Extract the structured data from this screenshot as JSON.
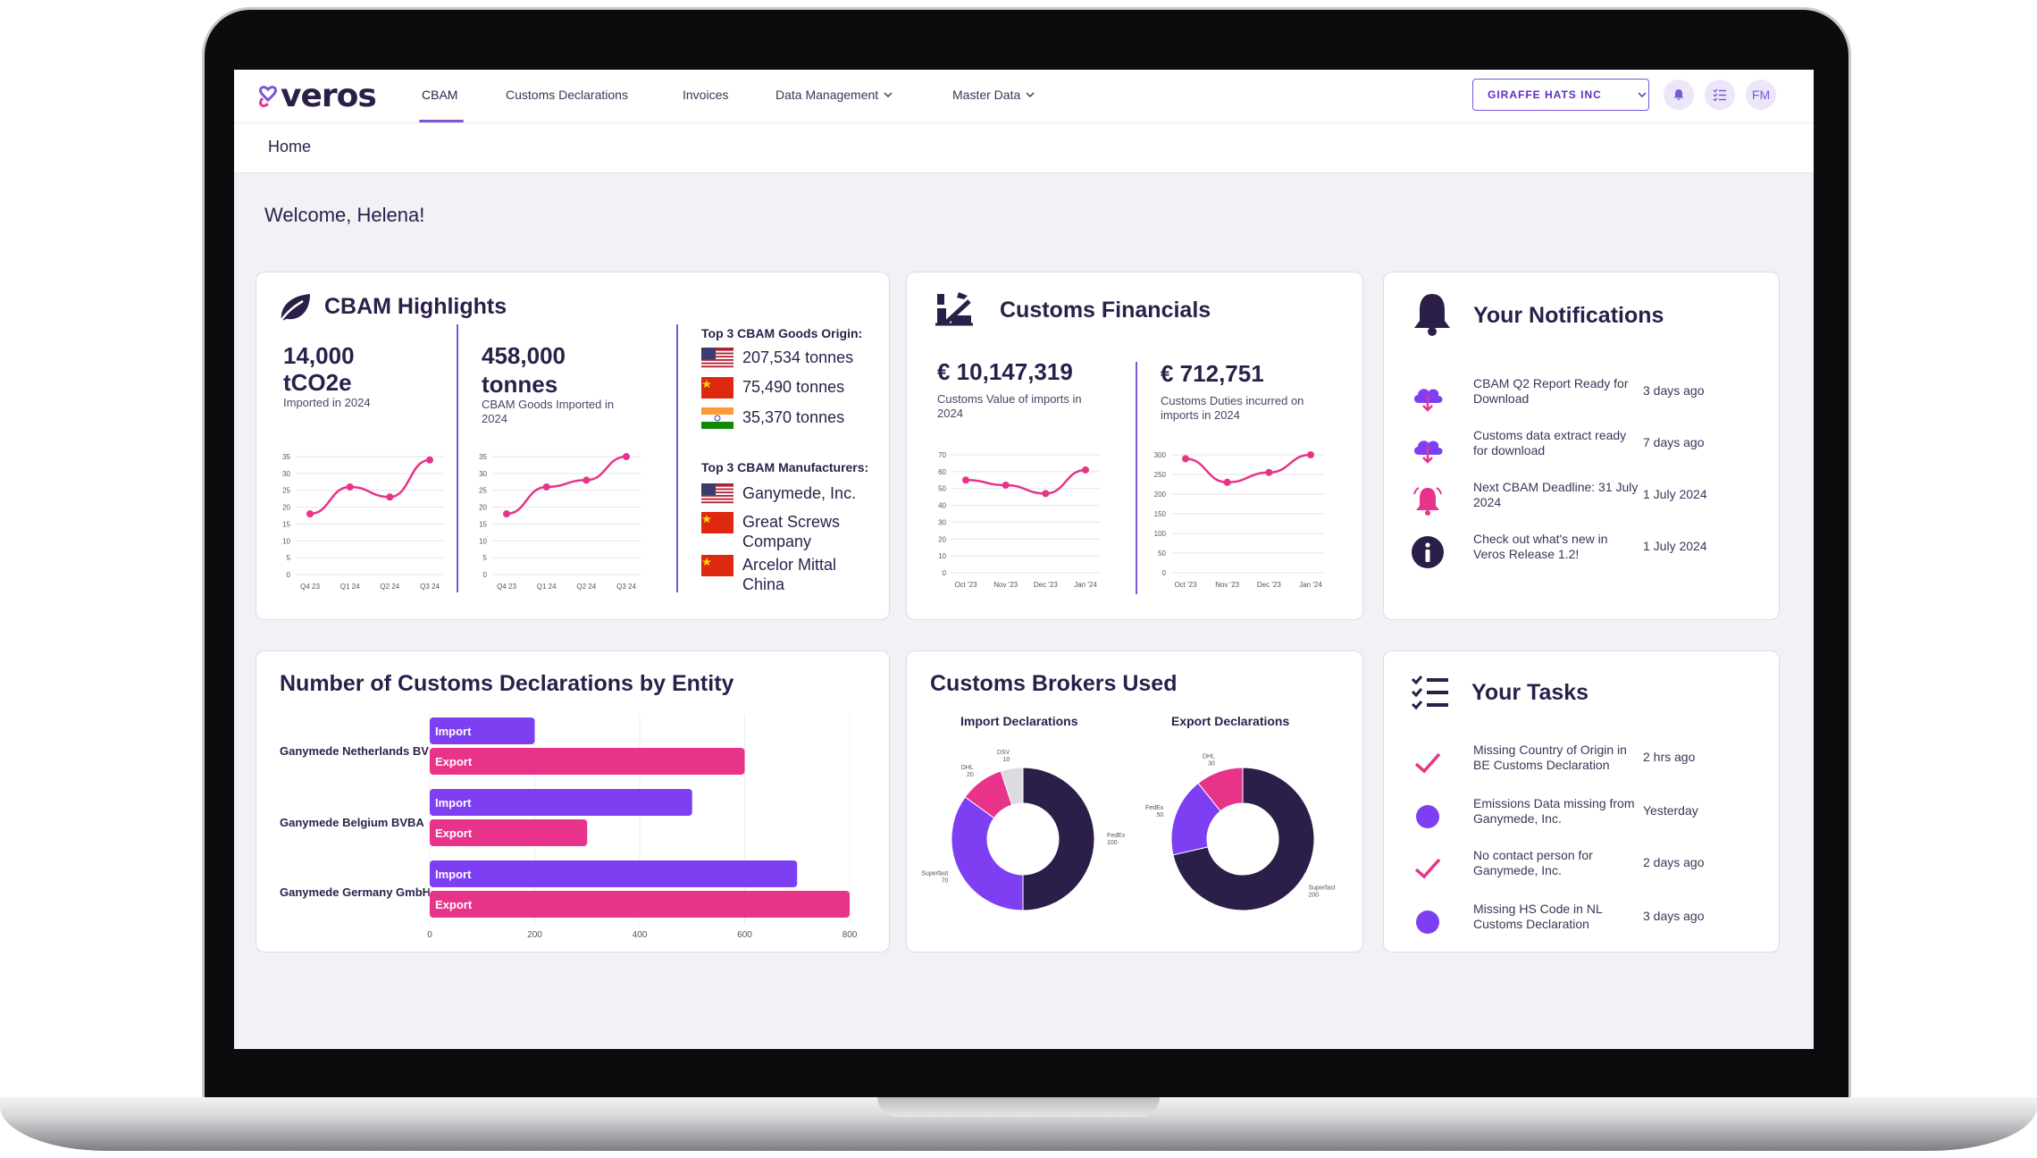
{
  "brand": {
    "name": "veros",
    "accent": "#7e55d6",
    "pink": "#e8338a",
    "navy": "#2b1f4a"
  },
  "nav": {
    "items": [
      {
        "label": "CBAM"
      },
      {
        "label": "Customs Declarations"
      },
      {
        "label": "Invoices"
      },
      {
        "label": "Data Management"
      },
      {
        "label": "Master Data"
      }
    ],
    "company": "GIRAFFE HATS INC",
    "user_initials": "FM",
    "icons": [
      "bell-icon",
      "task-list-icon"
    ]
  },
  "breadcrumb": "Home",
  "welcome": "Welcome, Helena!",
  "cbam": {
    "title": "CBAM Highlights",
    "metric1": {
      "value": "14,000",
      "unit": "tCO2e",
      "label": "Imported in 2024"
    },
    "metric2": {
      "value": "458,000",
      "unit": "tonnes",
      "label": "CBAM Goods Imported in 2024"
    },
    "origin_title": "Top 3 CBAM Goods Origin:",
    "origins": [
      {
        "country": "US",
        "value": "207,534 tonnes"
      },
      {
        "country": "CN",
        "value": "75,490 tonnes"
      },
      {
        "country": "IN",
        "value": "35,370 tonnes"
      }
    ],
    "manufacturers_title": "Top 3 CBAM Manufacturers:",
    "manufacturers": [
      {
        "country": "US",
        "name": "Ganymede, Inc."
      },
      {
        "country": "CN",
        "name": "Great Screws Company"
      },
      {
        "country": "CN",
        "name": "Arcelor Mittal China"
      }
    ]
  },
  "financials": {
    "title": "Customs Financials",
    "metric1": {
      "value": "€ 10,147,319",
      "label": "Customs Value of imports in 2024"
    },
    "metric2": {
      "value": "€ 712,751",
      "label": "Customs Duties incurred on imports in 2024"
    }
  },
  "notifications": {
    "title": "Your Notifications",
    "items": [
      {
        "icon": "cloud-download-icon",
        "text": "CBAM Q2 Report Ready for Download",
        "time": "3 days ago"
      },
      {
        "icon": "cloud-download-icon",
        "text": "Customs data extract ready for download",
        "time": "7 days ago"
      },
      {
        "icon": "alarm-bell-icon",
        "text": "Next CBAM Deadline: 31 July 2024",
        "time": "1 July 2024"
      },
      {
        "icon": "info-icon",
        "text": "Check out what's new in Veros Release 1.2!",
        "time": "1 July 2024"
      }
    ]
  },
  "declarations": {
    "title": "Number of Customs Declarations by Entity",
    "entities": [
      "Ganymede Netherlands BV",
      "Ganymede Belgium BVBA",
      "Ganymede Germany GmbH"
    ]
  },
  "brokers": {
    "title": "Customs Brokers Used",
    "import_title": "Import Declarations",
    "export_title": "Export Declarations"
  },
  "tasks": {
    "title": "Your Tasks",
    "items": [
      {
        "icon": "check-icon",
        "text": "Missing Country of Origin in BE Customs Declaration",
        "time": "2 hrs ago"
      },
      {
        "icon": "dot-icon",
        "text": "Emissions Data missing from Ganymede, Inc.",
        "time": "Yesterday"
      },
      {
        "icon": "check-icon",
        "text": "No contact person for Ganymede, Inc.",
        "time": "2 days ago"
      },
      {
        "icon": "dot-icon",
        "text": "Missing HS Code in NL Customs Declaration",
        "time": "3 days ago"
      }
    ]
  },
  "chart_data": [
    {
      "id": "cbam-emissions",
      "type": "line",
      "x": [
        "Q4 23",
        "Q1 24",
        "Q2 24",
        "Q3 24"
      ],
      "values": [
        18,
        26,
        23,
        34
      ],
      "ylim": [
        0,
        35
      ],
      "yticks": [
        0,
        5,
        10,
        15,
        20,
        25,
        30,
        35
      ]
    },
    {
      "id": "cbam-goods",
      "type": "line",
      "x": [
        "Q4 23",
        "Q1 24",
        "Q2 24",
        "Q3 24"
      ],
      "values": [
        18,
        26,
        28,
        35
      ],
      "ylim": [
        0,
        35
      ],
      "yticks": [
        0,
        5,
        10,
        15,
        20,
        25,
        30,
        35
      ]
    },
    {
      "id": "customs-value",
      "type": "line",
      "x": [
        "Oct '23",
        "Nov '23",
        "Dec '23",
        "Jan '24"
      ],
      "values": [
        55,
        52,
        47,
        61
      ],
      "ylim": [
        0,
        70
      ],
      "yticks": [
        0,
        10,
        20,
        30,
        40,
        50,
        60,
        70
      ]
    },
    {
      "id": "customs-duties",
      "type": "line",
      "x": [
        "Oct '23",
        "Nov '23",
        "Dec '23",
        "Jan '24"
      ],
      "values": [
        290,
        230,
        255,
        300
      ],
      "ylim": [
        0,
        300
      ],
      "yticks": [
        0,
        50,
        100,
        150,
        200,
        250,
        300
      ]
    },
    {
      "id": "declarations-by-entity",
      "type": "bar",
      "orientation": "horizontal",
      "categories": [
        "Ganymede Netherlands BV",
        "Ganymede Belgium BVBA",
        "Ganymede Germany GmbH"
      ],
      "series": [
        {
          "name": "Import",
          "values": [
            200,
            500,
            700
          ]
        },
        {
          "name": "Export",
          "values": [
            600,
            300,
            800
          ]
        }
      ],
      "xticks": [
        0,
        200,
        400,
        600,
        800
      ],
      "xlim": [
        0,
        800
      ]
    },
    {
      "id": "import-brokers",
      "type": "pie",
      "donut": true,
      "title": "Import Declarations",
      "labels": [
        "FedEx",
        "Superfast",
        "DHL",
        "DSV"
      ],
      "values": [
        100,
        70,
        20,
        10
      ],
      "colors": [
        "#2b1f4a",
        "#7e3ff2",
        "#e8338a",
        "#dcdce0"
      ]
    },
    {
      "id": "export-brokers",
      "type": "pie",
      "donut": true,
      "title": "Export Declarations",
      "labels": [
        "Superfast",
        "FedEx",
        "DHL"
      ],
      "values": [
        200,
        50,
        30
      ],
      "colors": [
        "#2b1f4a",
        "#7e3ff2",
        "#e8338a"
      ]
    }
  ]
}
